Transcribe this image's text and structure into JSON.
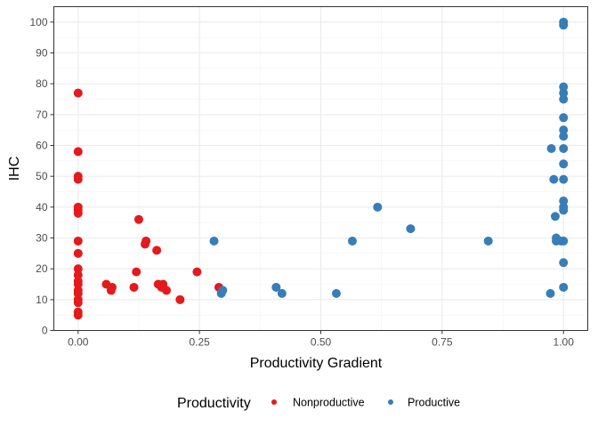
{
  "chart_data": {
    "type": "scatter",
    "xlabel": "Productivity Gradient",
    "ylabel": "IHC",
    "xlim": [
      -0.05,
      1.05
    ],
    "ylim": [
      0,
      105
    ],
    "x_ticks": [
      0,
      0.25,
      0.5,
      0.75,
      1
    ],
    "x_tick_labels": [
      "0.00",
      "0.25",
      "0.50",
      "0.75",
      "1.00"
    ],
    "y_ticks": [
      0,
      10,
      20,
      30,
      40,
      50,
      60,
      70,
      80,
      90,
      100
    ],
    "y_tick_labels": [
      "0",
      "10",
      "20",
      "30",
      "40",
      "50",
      "60",
      "70",
      "80",
      "90",
      "100"
    ],
    "grid": true,
    "legend": {
      "title": "Productivity",
      "position": "bottom"
    },
    "series": [
      {
        "name": "Nonproductive",
        "color": "#E41A1C",
        "points": [
          [
            0,
            5
          ],
          [
            0,
            6
          ],
          [
            0,
            9
          ],
          [
            0,
            10
          ],
          [
            0,
            12
          ],
          [
            0,
            13
          ],
          [
            0,
            15
          ],
          [
            0,
            16
          ],
          [
            0,
            18
          ],
          [
            0,
            20
          ],
          [
            0,
            25
          ],
          [
            0,
            29
          ],
          [
            0,
            38
          ],
          [
            0,
            39
          ],
          [
            0,
            40
          ],
          [
            0,
            49
          ],
          [
            0,
            50
          ],
          [
            0,
            58
          ],
          [
            0,
            77
          ],
          [
            0.058,
            15
          ],
          [
            0.068,
            13
          ],
          [
            0.07,
            14
          ],
          [
            0.115,
            14
          ],
          [
            0.12,
            19
          ],
          [
            0.125,
            36
          ],
          [
            0.138,
            28
          ],
          [
            0.14,
            29
          ],
          [
            0.162,
            26
          ],
          [
            0.165,
            15
          ],
          [
            0.172,
            14
          ],
          [
            0.175,
            15
          ],
          [
            0.182,
            13
          ],
          [
            0.21,
            10
          ],
          [
            0.245,
            19
          ],
          [
            0.29,
            14
          ]
        ]
      },
      {
        "name": "Productive",
        "color": "#377EB8",
        "points": [
          [
            0.28,
            29
          ],
          [
            0.295,
            12
          ],
          [
            0.298,
            13
          ],
          [
            0.408,
            14
          ],
          [
            0.42,
            12
          ],
          [
            0.532,
            12
          ],
          [
            0.565,
            29
          ],
          [
            0.617,
            40
          ],
          [
            0.685,
            33
          ],
          [
            0.845,
            29
          ],
          [
            0.973,
            12
          ],
          [
            0.975,
            59
          ],
          [
            0.98,
            49
          ],
          [
            0.983,
            37
          ],
          [
            0.985,
            30
          ],
          [
            0.985,
            29
          ],
          [
            0.995,
            29
          ],
          [
            1,
            14
          ],
          [
            1,
            22
          ],
          [
            1,
            29
          ],
          [
            1,
            39
          ],
          [
            1,
            40
          ],
          [
            1,
            42
          ],
          [
            1,
            49
          ],
          [
            1,
            54
          ],
          [
            1,
            59
          ],
          [
            1,
            63
          ],
          [
            1,
            65
          ],
          [
            1,
            69
          ],
          [
            1,
            75
          ],
          [
            1,
            77
          ],
          [
            1,
            79
          ],
          [
            1,
            99
          ],
          [
            1,
            100
          ]
        ]
      }
    ]
  }
}
